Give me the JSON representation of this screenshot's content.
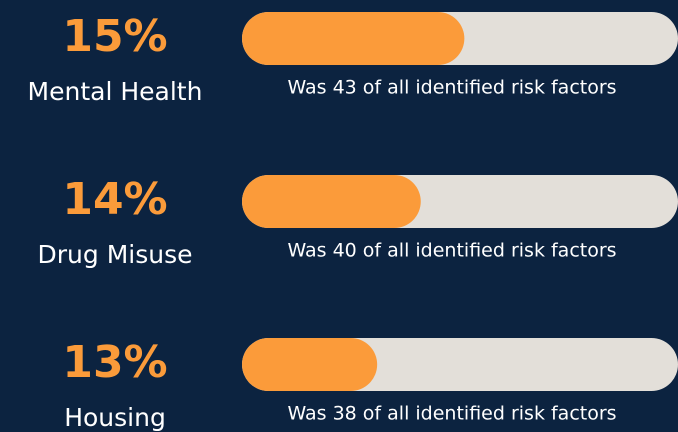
{
  "chart_data": {
    "type": "progress",
    "categories": [
      "Mental Health",
      "Drug Misuse",
      "Housing"
    ],
    "headlines": [
      "15%",
      "14%",
      "13%"
    ],
    "captions": [
      "Was 43 of all identified risk factors",
      "Was 40 of all identified risk factors",
      "Was 38 of all identified risk factors"
    ],
    "values": [
      51,
      41,
      31
    ],
    "xlim": [
      0,
      100
    ],
    "color": "#fb9b3a",
    "track_color": "#e3dfd9",
    "background": "#0c2340"
  }
}
